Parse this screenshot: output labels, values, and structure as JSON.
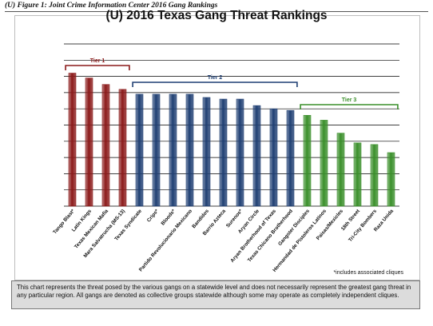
{
  "figure_caption": "(U)  Figure 1: Joint Crime Information Center 2016 Gang Rankings",
  "footnote": "*includes associated cliques",
  "note_text": "This chart represents the threat posed by the various gangs on a statewide level and does not necessarily represent the greatest gang threat in any particular region.  All gangs are denoted as collective groups statewide although some may operate as completely independent cliques.",
  "colors": {
    "tier1": "#8b1a1a",
    "tier2": "#1f3f73",
    "tier3": "#3a8f2a",
    "gridline": "#000000"
  },
  "chart_data": {
    "type": "bar",
    "title": "(U)  2016 Texas Gang Threat Rankings",
    "xlabel": "",
    "ylabel": "",
    "ylim": [
      0,
      10
    ],
    "grid": true,
    "y_tick_labels_shown": false,
    "categories": [
      "Tango Blast*",
      "Latin Kings",
      "Texas Mexican Mafia",
      "Mara Salvatrucha (MS-13)",
      "Texas Syndicate",
      "Crips*",
      "Bloods*",
      "Partido Revolucionario Mexicano",
      "Bandidos",
      "Barrio Azteca",
      "Surenos*",
      "Aryan Circle",
      "Aryan Brotherhood of Texas",
      "Texas Chicano Brotherhood",
      "Gangster Disciples",
      "Hermandad de Pistoleros Latinos",
      "Paisas/Mexicles",
      "18th Street",
      "Tri-City Bombers",
      "Raza Unida"
    ],
    "values": [
      8.2,
      7.9,
      7.5,
      7.2,
      6.9,
      6.9,
      6.9,
      6.9,
      6.7,
      6.6,
      6.6,
      6.2,
      6.0,
      5.9,
      5.6,
      5.3,
      4.5,
      3.9,
      3.8,
      3.3
    ],
    "tiers": [
      {
        "label": "Tier 1",
        "start": 0,
        "end": 3
      },
      {
        "label": "Tier 2",
        "start": 4,
        "end": 13
      },
      {
        "label": "Tier 3",
        "start": 14,
        "end": 19
      }
    ]
  }
}
